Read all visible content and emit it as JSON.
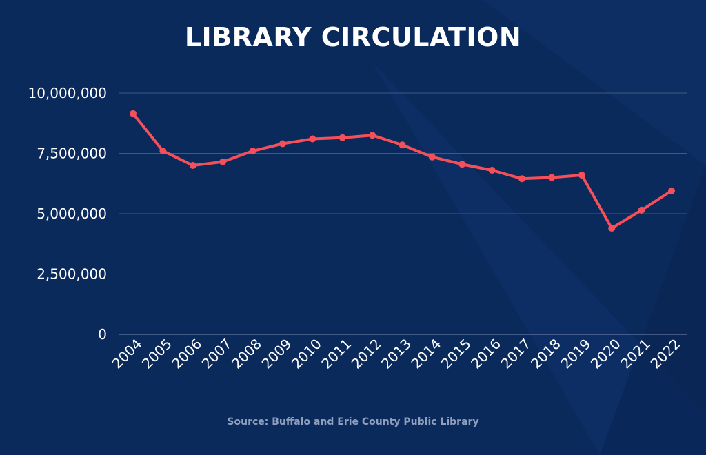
{
  "title": "LIBRARY CIRCULATION",
  "source": "Source: Buffalo and Erie County Public Library",
  "colors": {
    "background": "#0a2a5c",
    "line": "#f5505a",
    "grid": "#3d5a86",
    "text": "#ffffff",
    "source": "#8f9fbd"
  },
  "chart_data": {
    "type": "line",
    "title": "LIBRARY CIRCULATION",
    "xlabel": "",
    "ylabel": "",
    "ylim": [
      0,
      10000000
    ],
    "yticks": [
      0,
      2500000,
      5000000,
      7500000,
      10000000
    ],
    "ytick_labels": [
      "0",
      "2,500,000",
      "5,000,000",
      "7,500,000",
      "10,000,000"
    ],
    "categories": [
      "2004",
      "2005",
      "2006",
      "2007",
      "2008",
      "2009",
      "2010",
      "2011",
      "2012",
      "2013",
      "2014",
      "2015",
      "2016",
      "2017",
      "2018",
      "2019",
      "2020",
      "2021",
      "2022"
    ],
    "series": [
      {
        "values": [
          9150000,
          7600000,
          7000000,
          7150000,
          7600000,
          7900000,
          8100000,
          8150000,
          8250000,
          7850000,
          7350000,
          7050000,
          6800000,
          6450000,
          6500000,
          6600000,
          4400000,
          5150000,
          5950000
        ]
      }
    ],
    "grid": true,
    "legend": "none"
  }
}
